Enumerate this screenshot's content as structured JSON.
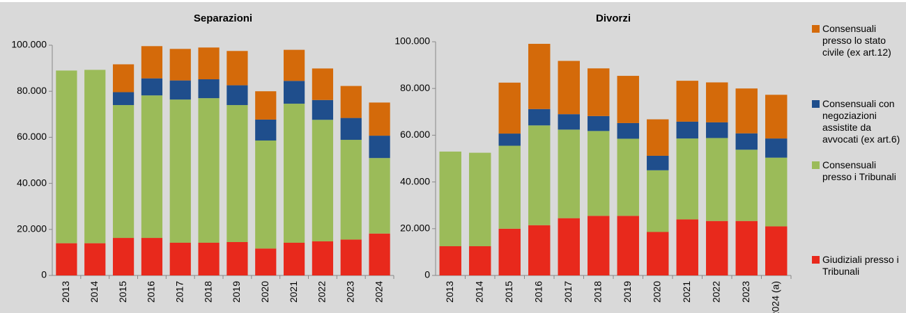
{
  "chart_data": [
    {
      "type": "stacked_bar",
      "title": "Separazioni",
      "categories": [
        "2013",
        "2014",
        "2015",
        "2016",
        "2017",
        "2018",
        "2019",
        "2020",
        "2021",
        "2022",
        "2023",
        "2024"
      ],
      "series": [
        {
          "name": "Giudiziali presso i Tribunali",
          "color": "#e8291c",
          "values": [
            14000,
            14000,
            16300,
            16300,
            14200,
            14200,
            14500,
            11700,
            14200,
            14800,
            15600,
            18200
          ]
        },
        {
          "name": "Consensuali presso i Tribunali",
          "color": "#9bbb59",
          "values": [
            75000,
            75300,
            57700,
            61900,
            62200,
            62800,
            59500,
            46900,
            60400,
            52800,
            43300,
            32800
          ]
        },
        {
          "name": "Consensuali con negoziazioni assistite da avvocati (ex art.6)",
          "color": "#1f4e8c",
          "values": [
            null,
            null,
            5600,
            7400,
            8300,
            8200,
            8600,
            9100,
            9900,
            8600,
            9500,
            9700
          ]
        },
        {
          "name": "Consensuali presso lo stato civile (ex art.12)",
          "color": "#d46a0a",
          "values": [
            null,
            null,
            12100,
            14000,
            13700,
            13800,
            14900,
            12300,
            13500,
            13700,
            13900,
            14400
          ]
        }
      ],
      "ylim": [
        0,
        100000
      ],
      "yticks": [
        0,
        {
          "value": 20000,
          "label": "20.000"
        },
        {
          "value": 40000,
          "label": "40.000"
        },
        {
          "value": 60000,
          "label": "60.000"
        },
        {
          "value": 80000,
          "label": "80.000"
        },
        {
          "value": 100000,
          "label": "100.000"
        }
      ]
    },
    {
      "type": "stacked_bar",
      "title": "Divorzi",
      "categories": [
        "2013",
        "2014",
        "2015",
        "2016",
        "2017",
        "2018",
        "2019",
        "2020",
        "2021",
        "2022",
        "2023",
        "2024 (a)"
      ],
      "series": [
        {
          "color": "#e8291c",
          "values": [
            12500,
            12500,
            20000,
            21500,
            24500,
            25500,
            25500,
            18600,
            24000,
            23300,
            23300,
            21000
          ]
        },
        {
          "color": "#9bbb59",
          "values": [
            40500,
            40000,
            35500,
            42700,
            37900,
            36300,
            33000,
            26400,
            34600,
            35500,
            30500,
            29400
          ]
        },
        {
          "color": "#1f4e8c",
          "values": [
            null,
            null,
            5200,
            7000,
            6600,
            6400,
            6700,
            6200,
            7200,
            6700,
            7000,
            8200
          ]
        },
        {
          "color": "#d46a0a",
          "values": [
            null,
            null,
            21800,
            27900,
            22800,
            20400,
            20200,
            15600,
            17500,
            17100,
            19200,
            18700
          ]
        }
      ],
      "ylim": [
        0,
        100000
      ],
      "yticks": [
        0,
        {
          "value": 20000,
          "label": "20.000"
        },
        {
          "value": 40000,
          "label": "40.000"
        },
        {
          "value": 60000,
          "label": "60.000"
        },
        {
          "value": 80000,
          "label": "80.000"
        },
        {
          "value": 100000,
          "label": "100.000"
        }
      ]
    }
  ]
}
